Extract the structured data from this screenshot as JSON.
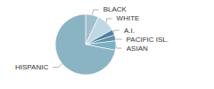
{
  "chart_data": {
    "type": "pie",
    "categories": [
      "BLACK",
      "WHITE",
      "A.I.",
      "PACIFIC ISL.",
      "ASIAN",
      "HISPANIC"
    ],
    "values": [
      7,
      10,
      3,
      3,
      5,
      72
    ],
    "colors": [
      "#a0bfce",
      "#c0d8e4",
      "#4f7f9f",
      "#6090a8",
      "#7aafc4",
      "#8ab4c4"
    ]
  }
}
